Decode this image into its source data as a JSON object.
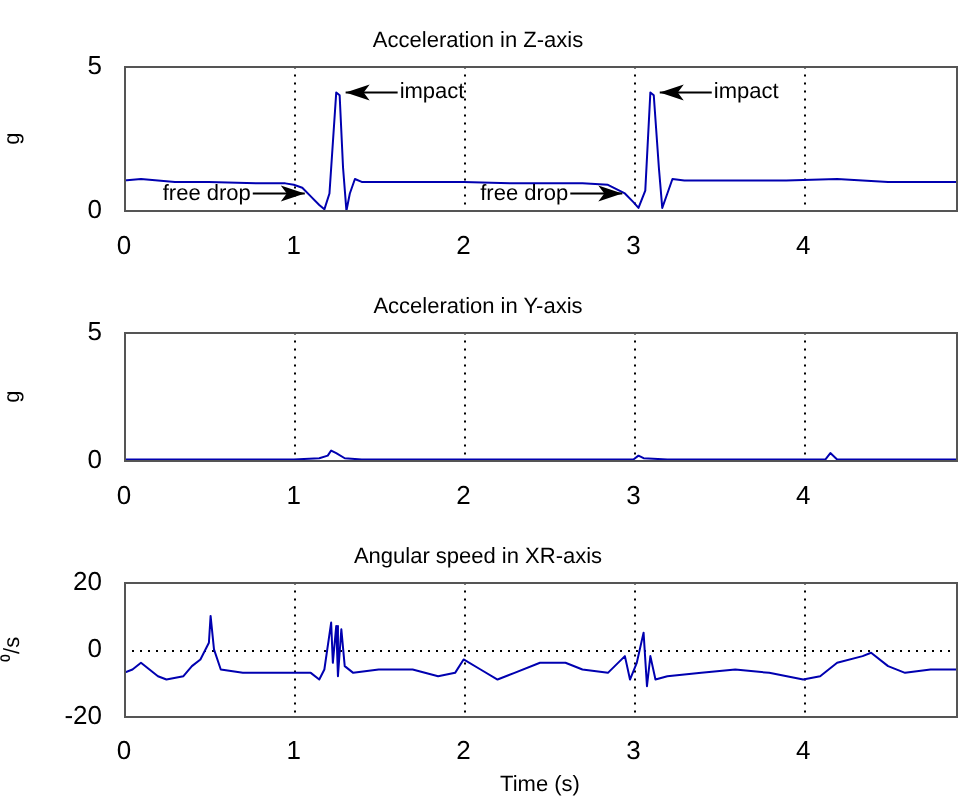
{
  "chart_data": [
    {
      "type": "line",
      "title": "Acceleration in Z-axis",
      "ylabel": "g",
      "xlim": [
        0,
        4.9
      ],
      "xticks": [
        0,
        1,
        2,
        3,
        4
      ],
      "ylim": [
        0,
        5
      ],
      "yticks": [
        0,
        5
      ],
      "grid": true,
      "legend": false,
      "marker": "none",
      "line_style": "solid",
      "x": [
        0,
        0.1,
        0.3,
        0.5,
        0.8,
        0.95,
        1.0,
        1.05,
        1.1,
        1.15,
        1.18,
        1.21,
        1.25,
        1.27,
        1.29,
        1.31,
        1.33,
        1.36,
        1.4,
        1.6,
        2.0,
        2.3,
        2.7,
        2.85,
        2.95,
        3.0,
        3.03,
        3.07,
        3.1,
        3.12,
        3.15,
        3.17,
        3.2,
        3.23,
        3.3,
        3.6,
        3.9,
        4.2,
        4.5,
        4.9
      ],
      "series": [
        {
          "color": "#0000b0",
          "values": [
            1.05,
            1.1,
            1.0,
            1.0,
            0.95,
            0.95,
            0.9,
            0.8,
            0.5,
            0.2,
            0.05,
            0.6,
            4.1,
            4.0,
            1.5,
            0.0,
            0.6,
            1.1,
            1.0,
            1.0,
            1.0,
            0.95,
            0.95,
            0.9,
            0.6,
            0.3,
            0.1,
            0.7,
            4.1,
            4.0,
            1.5,
            0.1,
            0.6,
            1.1,
            1.05,
            1.05,
            1.05,
            1.1,
            1.0,
            1.0
          ]
        }
      ],
      "annotations": [
        {
          "text": "impact",
          "x": 1.27,
          "y": 4.1
        },
        {
          "text": "impact",
          "x": 3.12,
          "y": 4.1
        },
        {
          "text": "free drop",
          "x": 1.1,
          "y": 0.6
        },
        {
          "text": "free drop",
          "x": 2.97,
          "y": 0.6
        }
      ]
    },
    {
      "type": "line",
      "title": "Acceleration in Y-axis",
      "ylabel": "g",
      "xlim": [
        0,
        4.9
      ],
      "xticks": [
        0,
        1,
        2,
        3,
        4
      ],
      "ylim": [
        0,
        5
      ],
      "yticks": [
        0,
        5
      ],
      "grid": true,
      "legend": false,
      "marker": "none",
      "line_style": "solid",
      "x": [
        0,
        0.5,
        1.0,
        1.15,
        1.2,
        1.22,
        1.25,
        1.3,
        1.4,
        2.0,
        2.5,
        3.0,
        3.03,
        3.06,
        3.2,
        4.0,
        4.13,
        4.16,
        4.2,
        4.9
      ],
      "series": [
        {
          "color": "#0000b0",
          "values": [
            0.05,
            0.05,
            0.05,
            0.1,
            0.2,
            0.4,
            0.3,
            0.1,
            0.05,
            0.05,
            0.05,
            0.05,
            0.2,
            0.1,
            0.05,
            0.05,
            0.05,
            0.3,
            0.05,
            0.05
          ]
        }
      ]
    },
    {
      "type": "line",
      "title": "Angular speed in XR-axis",
      "ylabel": "⁰/s",
      "xlabel": "Time (s)",
      "xlim": [
        0,
        4.9
      ],
      "xticks": [
        0,
        1,
        2,
        3,
        4
      ],
      "ylim": [
        -20,
        20
      ],
      "yticks": [
        -20,
        0,
        20
      ],
      "grid": true,
      "legend": false,
      "marker": "none",
      "line_style": "solid",
      "x": [
        0,
        0.05,
        0.1,
        0.15,
        0.2,
        0.25,
        0.35,
        0.4,
        0.45,
        0.5,
        0.51,
        0.53,
        0.57,
        0.7,
        0.9,
        1.1,
        1.15,
        1.18,
        1.22,
        1.23,
        1.25,
        1.26,
        1.28,
        1.3,
        1.35,
        1.5,
        1.7,
        1.85,
        1.95,
        2.0,
        2.1,
        2.2,
        2.3,
        2.45,
        2.6,
        2.7,
        2.85,
        2.95,
        2.98,
        3.02,
        3.06,
        3.08,
        3.1,
        3.13,
        3.2,
        3.4,
        3.6,
        3.8,
        4.0,
        4.1,
        4.2,
        4.35,
        4.4,
        4.5,
        4.6,
        4.75,
        4.9
      ],
      "series": [
        {
          "color": "#0000b0",
          "values": [
            -7,
            -6,
            -4,
            -6,
            -8,
            -9,
            -8,
            -5,
            -3,
            2,
            10,
            0,
            -6,
            -7,
            -7,
            -7,
            -9,
            -6,
            8,
            -4,
            7,
            -8,
            6,
            -5,
            -7,
            -6,
            -6,
            -8,
            -7,
            -3,
            -6,
            -9,
            -7,
            -4,
            -4,
            -6,
            -7,
            -2,
            -9,
            -4,
            5,
            -11,
            -2,
            -9,
            -8,
            -7,
            -6,
            -7,
            -9,
            -8,
            -4,
            -2,
            -1,
            -5,
            -7,
            -6,
            -6
          ]
        }
      ]
    }
  ]
}
